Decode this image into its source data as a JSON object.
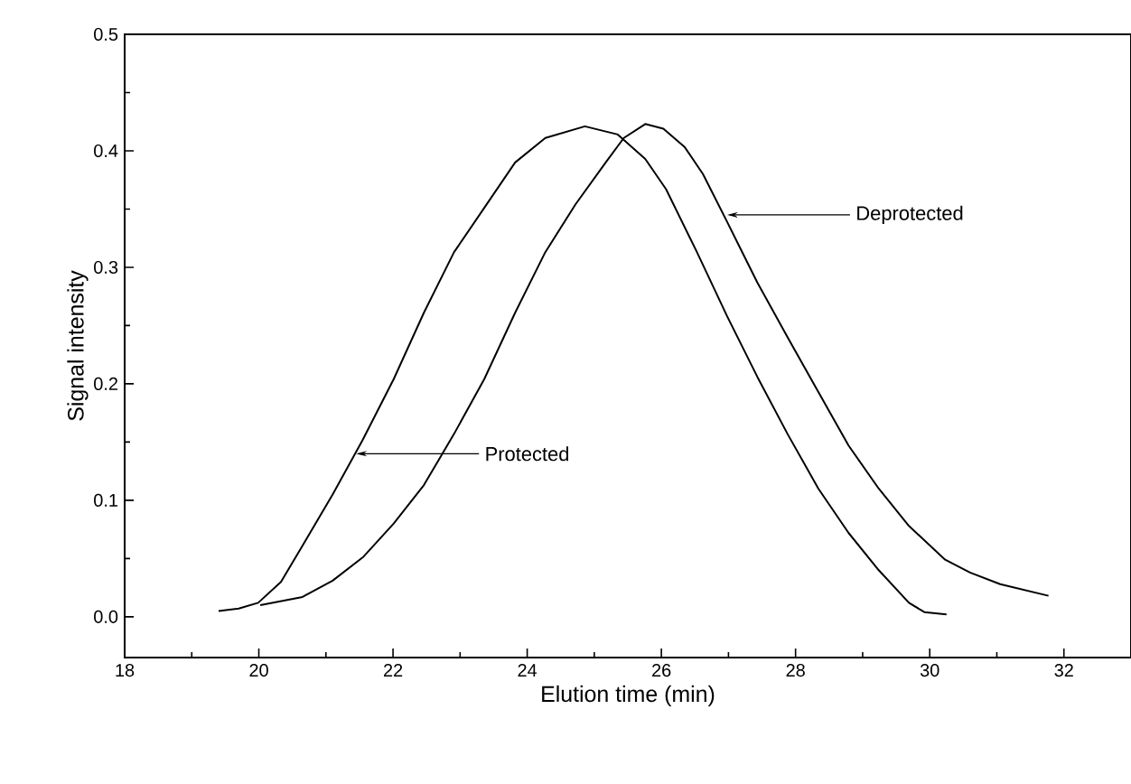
{
  "chart_data": {
    "type": "line",
    "xlabel": "Elution time (min)",
    "ylabel": "Signal intensity",
    "xlim": [
      18,
      33
    ],
    "ylim": [
      -0.035,
      0.5
    ],
    "xticks": [
      18,
      20,
      22,
      24,
      26,
      28,
      30,
      32
    ],
    "yticks": [
      {
        "value": 0,
        "label": "0.0"
      },
      {
        "value": 0.1,
        "label": "0.1"
      },
      {
        "value": 0.2,
        "label": "0.2"
      },
      {
        "value": 0.3,
        "label": "0.3"
      },
      {
        "value": 0.4,
        "label": "0.4"
      },
      {
        "value": 0.5,
        "label": "0.5"
      }
    ],
    "grid": false,
    "marker": "none",
    "line_style": "solid",
    "series": [
      {
        "color": "#000000",
        "x": [
          19.4,
          19.7,
          19.99,
          20.33,
          20.65,
          21.1,
          21.55,
          22.01,
          22.46,
          22.91,
          23.36,
          23.82,
          24.27,
          24.86,
          25.35,
          25.76,
          26.07,
          26.53,
          26.98,
          27.43,
          27.88,
          28.34,
          28.79,
          29.24,
          29.69,
          29.92,
          30.25
        ],
        "values": [
          0.005,
          0.007,
          0.012,
          0.03,
          0.061,
          0.105,
          0.152,
          0.204,
          0.261,
          0.313,
          0.351,
          0.39,
          0.411,
          0.421,
          0.414,
          0.393,
          0.367,
          0.313,
          0.258,
          0.206,
          0.157,
          0.11,
          0.072,
          0.04,
          0.012,
          0.004,
          0.002
        ]
      },
      {
        "color": "#000000",
        "x": [
          20.02,
          20.65,
          21.1,
          21.55,
          22.01,
          22.46,
          22.91,
          23.36,
          23.82,
          24.27,
          24.72,
          25.17,
          25.44,
          25.76,
          26.03,
          26.35,
          26.62,
          26.98,
          27.43,
          27.88,
          28.34,
          28.79,
          29.24,
          29.69,
          30.23,
          30.6,
          31.05,
          31.77
        ],
        "values": [
          0.01,
          0.017,
          0.031,
          0.051,
          0.08,
          0.113,
          0.157,
          0.204,
          0.261,
          0.313,
          0.354,
          0.39,
          0.411,
          0.423,
          0.419,
          0.403,
          0.38,
          0.339,
          0.287,
          0.24,
          0.193,
          0.147,
          0.11,
          0.078,
          0.049,
          0.038,
          0.028,
          0.018
        ]
      }
    ],
    "annotations": [
      {
        "text": "Protected",
        "x": 21.45,
        "y": 0.14
      },
      {
        "text": "Deprotected",
        "x": 26.98,
        "y": 0.345
      }
    ]
  }
}
